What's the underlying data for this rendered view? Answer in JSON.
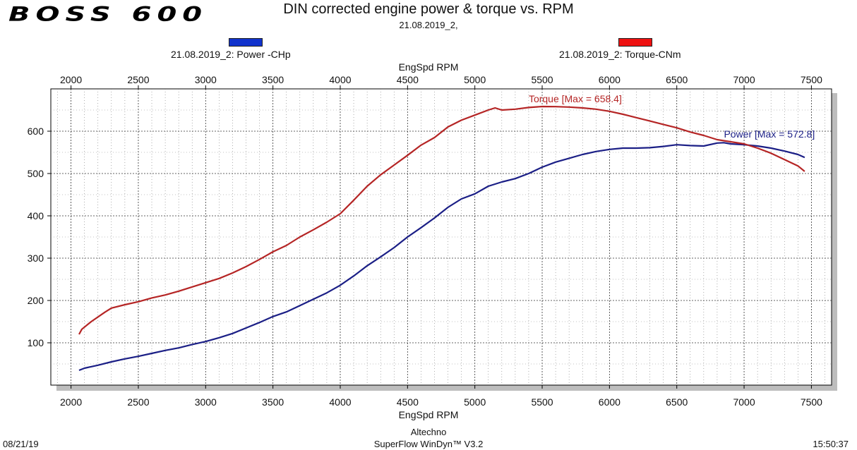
{
  "header": {
    "logo_text": "BOSS 600",
    "title": "DIN corrected engine power & torque vs. RPM",
    "subtitle": "21.08.2019_2,"
  },
  "legend": {
    "power_label": "21.08.2019_2: Power -CHp",
    "torque_label": "21.08.2019_2: Torque-CNm"
  },
  "footer": {
    "date": "08/21/19",
    "company": "Altechno",
    "software": "SuperFlow WinDyn™ V3.2",
    "time": "15:50:37"
  },
  "colors": {
    "power": "#1b1f86",
    "torque": "#b52525",
    "power_swatch": "#1133cc",
    "torque_swatch": "#ee1111"
  },
  "chart_data": {
    "type": "line",
    "xlabel": "EngSpd RPM",
    "xlabel_top": "EngSpd RPM",
    "xlim": [
      1850,
      7650
    ],
    "ylim": [
      0,
      700
    ],
    "xticks": [
      2000,
      2500,
      3000,
      3500,
      4000,
      4500,
      5000,
      5500,
      6000,
      6500,
      7000,
      7500
    ],
    "yticks": [
      100,
      200,
      300,
      400,
      500,
      600
    ],
    "grid": true,
    "series": [
      {
        "name": "21.08.2019_2: Power -CHp",
        "key": "power",
        "annotation": "Power  [Max = 572.8]",
        "x": [
          2060,
          2100,
          2200,
          2300,
          2400,
          2500,
          2600,
          2700,
          2800,
          2900,
          3000,
          3100,
          3200,
          3300,
          3400,
          3500,
          3600,
          3700,
          3800,
          3900,
          4000,
          4100,
          4200,
          4300,
          4400,
          4500,
          4600,
          4700,
          4800,
          4900,
          5000,
          5100,
          5200,
          5300,
          5400,
          5500,
          5600,
          5700,
          5800,
          5900,
          6000,
          6100,
          6200,
          6300,
          6400,
          6500,
          6600,
          6700,
          6800,
          6850,
          6900,
          7000,
          7100,
          7200,
          7300,
          7400,
          7450
        ],
        "y": [
          35,
          40,
          47,
          55,
          62,
          68,
          75,
          82,
          88,
          96,
          103,
          112,
          122,
          135,
          148,
          162,
          173,
          188,
          203,
          218,
          236,
          258,
          282,
          303,
          325,
          350,
          372,
          395,
          420,
          440,
          452,
          470,
          480,
          488,
          500,
          515,
          527,
          536,
          545,
          552,
          557,
          560,
          560,
          561,
          564,
          568,
          566,
          565,
          572,
          572.8,
          570,
          568,
          565,
          560,
          553,
          545,
          538
        ]
      },
      {
        "name": "21.08.2019_2: Torque-CNm",
        "key": "torque",
        "annotation": "Torque [Max = 658.4]",
        "x": [
          2060,
          2080,
          2150,
          2250,
          2300,
          2400,
          2500,
          2600,
          2700,
          2800,
          2900,
          3000,
          3100,
          3200,
          3300,
          3400,
          3500,
          3600,
          3700,
          3800,
          3900,
          4000,
          4100,
          4200,
          4300,
          4400,
          4500,
          4600,
          4700,
          4800,
          4900,
          5000,
          5100,
          5150,
          5200,
          5300,
          5400,
          5500,
          5600,
          5700,
          5800,
          5900,
          6000,
          6100,
          6200,
          6300,
          6400,
          6500,
          6600,
          6700,
          6800,
          6900,
          7000,
          7100,
          7200,
          7300,
          7400,
          7450
        ],
        "y": [
          120,
          132,
          150,
          172,
          182,
          190,
          197,
          206,
          213,
          222,
          232,
          242,
          252,
          265,
          280,
          297,
          315,
          330,
          350,
          367,
          385,
          405,
          437,
          470,
          497,
          520,
          543,
          567,
          585,
          610,
          626,
          638,
          650,
          655,
          650,
          652,
          656,
          658.4,
          658,
          657,
          655,
          652,
          647,
          640,
          632,
          624,
          616,
          608,
          598,
          590,
          580,
          575,
          570,
          560,
          548,
          533,
          518,
          505
        ]
      }
    ]
  }
}
